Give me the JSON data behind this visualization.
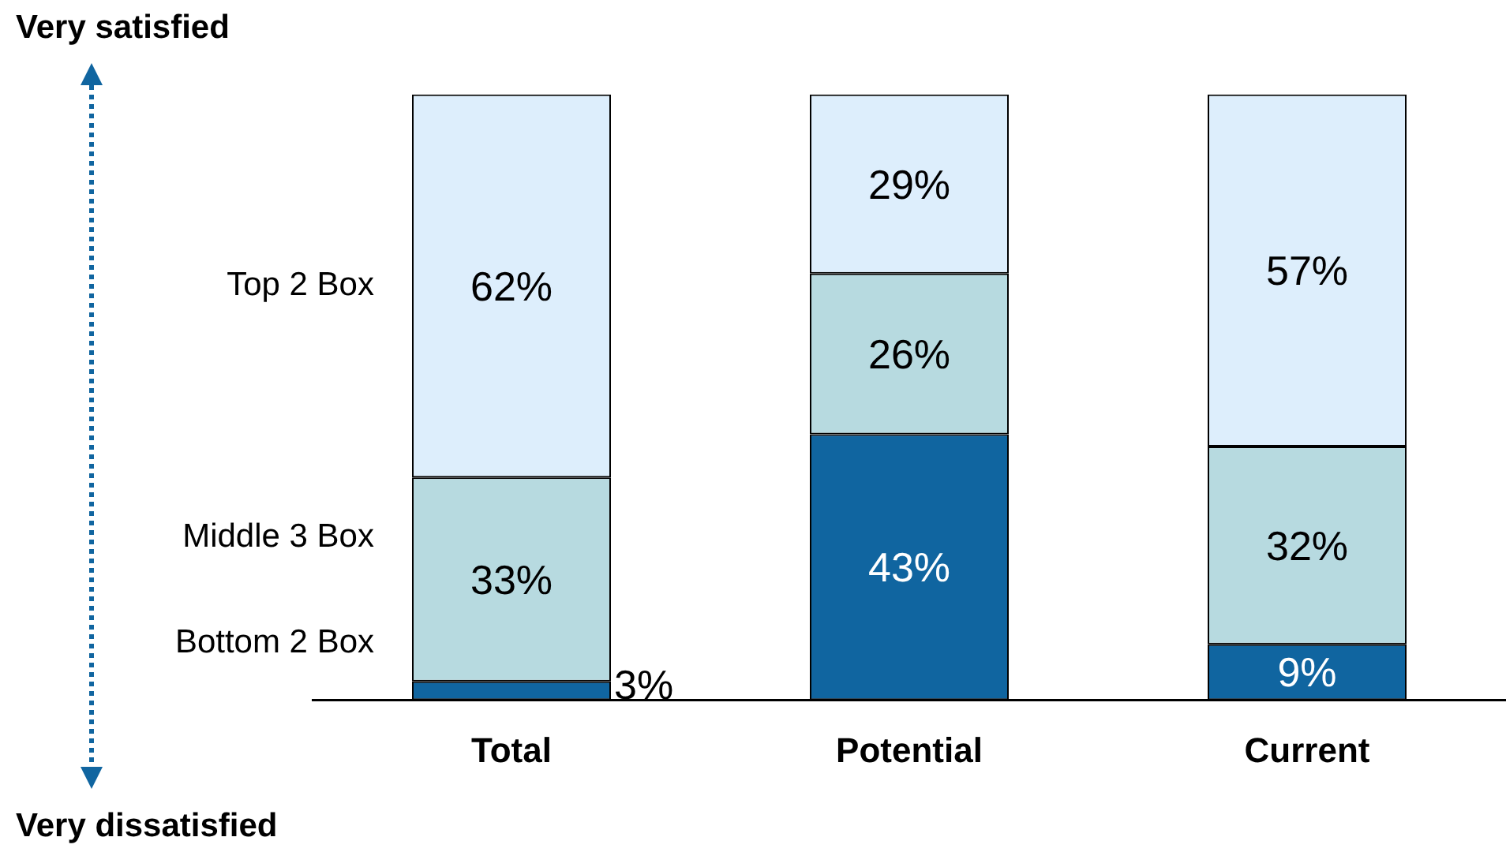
{
  "chart_data": {
    "type": "bar",
    "stacked": true,
    "categories": [
      "Total",
      "Potential",
      "Current"
    ],
    "series": [
      {
        "name": "Bottom 2 Box",
        "color": "#1065a0",
        "values": [
          3,
          43,
          9
        ],
        "value_labels": [
          "3%",
          "43%",
          "9%"
        ]
      },
      {
        "name": "Middle 3 Box",
        "color": "#b7dae0",
        "values": [
          33,
          26,
          32
        ],
        "value_labels": [
          "33%",
          "26%",
          "32%"
        ]
      },
      {
        "name": "Top 2 Box",
        "color": "#ddeefc",
        "values": [
          62,
          29,
          57
        ],
        "value_labels": [
          "62%",
          "29%",
          "57%"
        ]
      }
    ],
    "tick_labels": "x",
    "legend": false,
    "annotations": [
      "Very satisfied",
      "Very dissatisfied"
    ]
  }
}
